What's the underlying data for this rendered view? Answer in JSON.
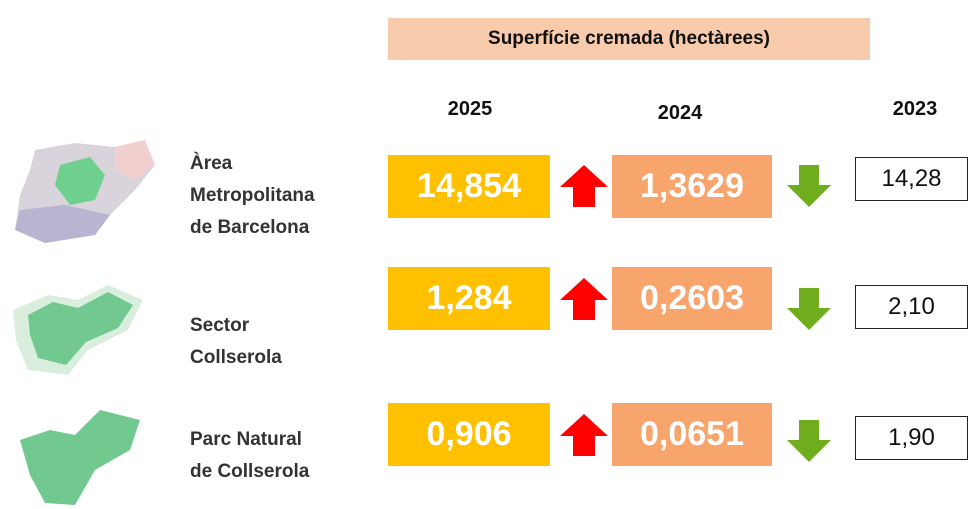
{
  "header": {
    "title": "Superfície cremada (hectàrees)"
  },
  "years": [
    "2025",
    "2024",
    "2023"
  ],
  "rows": [
    {
      "label": [
        "Àrea",
        "Metropolitana",
        "de Barcelona"
      ],
      "values": [
        "14,854",
        "1,3629",
        "14,28"
      ]
    },
    {
      "label": [
        "Sector",
        "Collserola"
      ],
      "values": [
        "1,284",
        "0,2603",
        "2,10"
      ]
    },
    {
      "label": [
        "Parc Natural",
        "de Collserola"
      ],
      "values": [
        "0,906",
        "0,0651",
        "1,90"
      ]
    }
  ]
}
